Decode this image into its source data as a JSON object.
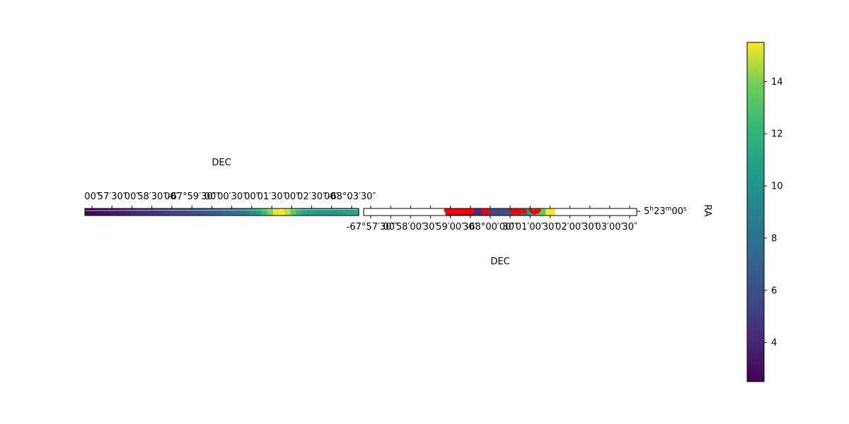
{
  "chart_data": [
    {
      "type": "heatmap",
      "panel": "left",
      "xlabel_top": "DEC",
      "tick_labels_top": [
        "00″",
        "57′30″",
        "00″",
        "58′30″",
        "00″",
        "-67°59′30″",
        "00″",
        "00′30″",
        "00″",
        "01′30″",
        "00″",
        "02′30″",
        "00″",
        "-68°03′30″"
      ],
      "colormap": "viridis",
      "values": [
        2.6,
        2.8,
        3.0,
        3.1,
        3.3,
        3.4,
        3.6,
        3.8,
        4.0,
        4.2,
        4.4,
        4.6,
        4.8,
        5.0,
        5.2,
        5.4,
        5.6,
        5.8,
        6.0,
        6.2,
        6.4,
        6.6,
        6.8,
        7.0,
        7.3,
        7.6,
        8.0,
        8.4,
        9.0,
        9.8,
        11.0,
        12.5,
        14.0,
        15.3,
        15.5,
        14.8,
        13.5,
        12.0,
        11.2,
        10.8,
        10.5,
        10.4,
        10.3,
        10.4,
        10.6,
        10.8,
        11.0,
        11.2
      ]
    },
    {
      "type": "heatmap",
      "panel": "right",
      "xlabel_bottom": "DEC",
      "ylabel_right": "RA",
      "ytick_label": "5h23m00s",
      "tick_labels_bottom": [
        "-67°57′30″",
        "00″",
        "58′00″",
        "30″",
        "59′00″",
        "30″",
        "-68°00′00″",
        "30″",
        "01′00″",
        "30″",
        "02′00″",
        "30″",
        "03′00″",
        "30″"
      ],
      "colormap": "viridis",
      "x_range": [
        0.3,
        0.7
      ],
      "values": [
        3.0,
        3.5,
        4.0,
        4.5,
        5.0,
        5.6,
        6.2,
        7.0,
        8.5,
        11.0,
        13.5,
        15.5
      ],
      "overlay": {
        "color": "#ff0000",
        "marker": "points"
      }
    }
  ],
  "colorbar": {
    "colormap": "viridis",
    "vmin": 2.5,
    "vmax": 15.5,
    "ticks": [
      4,
      6,
      8,
      10,
      12,
      14
    ],
    "tick_labels": [
      "4",
      "6",
      "8",
      "10",
      "12",
      "14"
    ]
  },
  "colors": {
    "overlay": "#ff0000",
    "axes": "#000000",
    "background": "#ffffff",
    "grid": "#dddddd"
  }
}
